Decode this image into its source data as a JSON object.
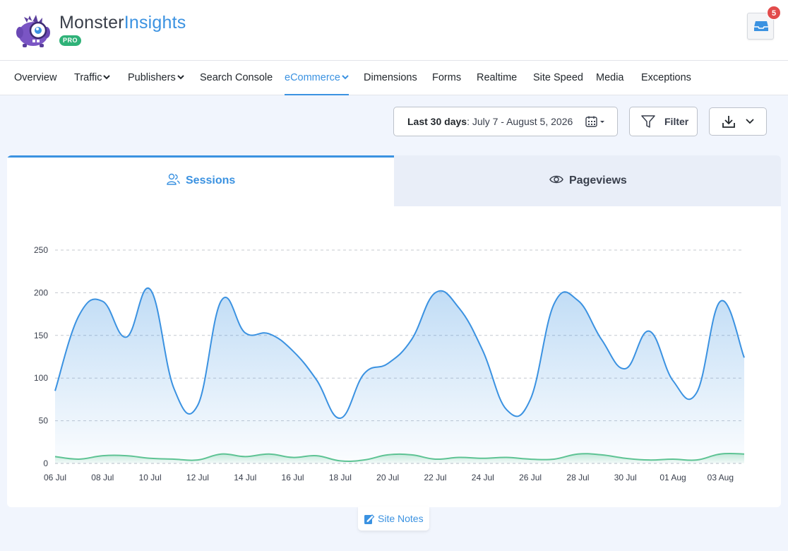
{
  "brand": {
    "name_part1": "Monster",
    "name_part2": "Insights",
    "badge": "PRO"
  },
  "notifications": {
    "count": "5",
    "icon": "inbox-icon"
  },
  "nav": [
    {
      "label": "Overview"
    },
    {
      "label": "Traffic",
      "dropdown": true
    },
    {
      "label": "Publishers",
      "dropdown": true
    },
    {
      "label": "Search Console"
    },
    {
      "label": "eCommerce",
      "dropdown": true,
      "active": true
    },
    {
      "label": "Dimensions"
    },
    {
      "label": "Forms"
    },
    {
      "label": "Realtime"
    },
    {
      "label": "Site Speed"
    },
    {
      "label": "Media"
    },
    {
      "label": "Exceptions"
    }
  ],
  "toolbar": {
    "date_range_label": "Last 30 days",
    "date_range_value": ": July 7 - August 5, 2026",
    "filter_label": "Filter"
  },
  "tabs": {
    "sessions": "Sessions",
    "pageviews": "Pageviews"
  },
  "site_notes_label": "Site Notes",
  "colors": {
    "accent": "#3b92e1",
    "secondary_series": "#5ec394",
    "badge_green": "#2fb278",
    "notif_red": "#e24b4b"
  },
  "chart_data": {
    "type": "area",
    "x": [
      "06 Jul",
      "07 Jul",
      "08 Jul",
      "09 Jul",
      "10 Jul",
      "11 Jul",
      "12 Jul",
      "13 Jul",
      "14 Jul",
      "15 Jul",
      "16 Jul",
      "17 Jul",
      "18 Jul",
      "19 Jul",
      "20 Jul",
      "21 Jul",
      "22 Jul",
      "23 Jul",
      "24 Jul",
      "25 Jul",
      "26 Jul",
      "27 Jul",
      "28 Jul",
      "29 Jul",
      "30 Jul",
      "31 Jul",
      "01 Aug",
      "02 Aug",
      "03 Aug",
      "04 Aug"
    ],
    "xticks": [
      "06 Jul",
      "08 Jul",
      "10 Jul",
      "12 Jul",
      "14 Jul",
      "16 Jul",
      "18 Jul",
      "20 Jul",
      "22 Jul",
      "24 Jul",
      "26 Jul",
      "28 Jul",
      "30 Jul",
      "01 Aug",
      "03 Aug"
    ],
    "series": [
      {
        "values": [
          85,
          173,
          190,
          148,
          204,
          88,
          68,
          191,
          153,
          152,
          132,
          98,
          53,
          105,
          117,
          145,
          200,
          182,
          132,
          63,
          75,
          187,
          191,
          145,
          111,
          155,
          97,
          83,
          190,
          124
        ]
      },
      {
        "values": [
          8,
          5,
          9,
          9,
          6,
          5,
          4,
          11,
          8,
          11,
          7,
          9,
          3,
          4,
          10,
          10,
          5,
          7,
          6,
          7,
          5,
          5,
          11,
          10,
          6,
          4,
          5,
          4,
          11,
          11
        ]
      }
    ],
    "ylim": [
      0,
      250
    ],
    "yticks": [
      0,
      50,
      100,
      150,
      200,
      250
    ],
    "grid": true,
    "legend": "none"
  }
}
